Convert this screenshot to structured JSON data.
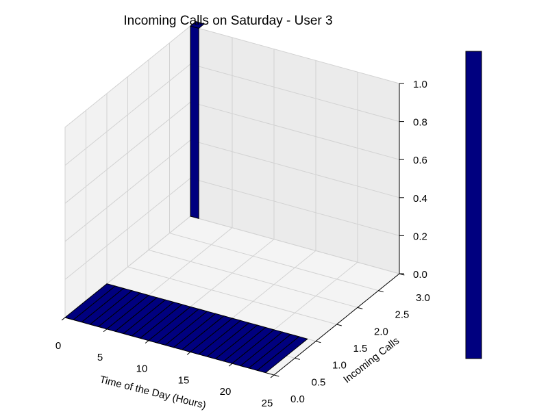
{
  "chart_data": {
    "type": "bar3d",
    "title": "Incoming Calls on Saturday - User 3",
    "xlabel": "Time of the Day (Hours)",
    "ylabel": "Incoming Calls",
    "zlabel": "",
    "x_ticks": [
      "0",
      "5",
      "10",
      "15",
      "20",
      "25"
    ],
    "y_ticks": [
      "0.0",
      "0.5",
      "1.0",
      "1.5",
      "2.0",
      "2.5",
      "3.0"
    ],
    "z_ticks": [
      "0.0",
      "0.2",
      "0.4",
      "0.6",
      "0.8",
      "1.0"
    ],
    "xlim": [
      0,
      25
    ],
    "ylim": [
      0,
      3
    ],
    "zlim": [
      0,
      1
    ],
    "grid": true,
    "colorbar": true,
    "bars": [
      {
        "y": 0,
        "x_start": 0,
        "x_end": 24,
        "count": 24,
        "height": 0
      },
      {
        "y": 3,
        "x_start": 0,
        "x_end": 1,
        "count": 1,
        "height": 1
      }
    ],
    "colors": {
      "bar": "#00007f",
      "edge": "#000000",
      "pane": "#f2f2f2",
      "grid": "#d2d2d2"
    }
  }
}
